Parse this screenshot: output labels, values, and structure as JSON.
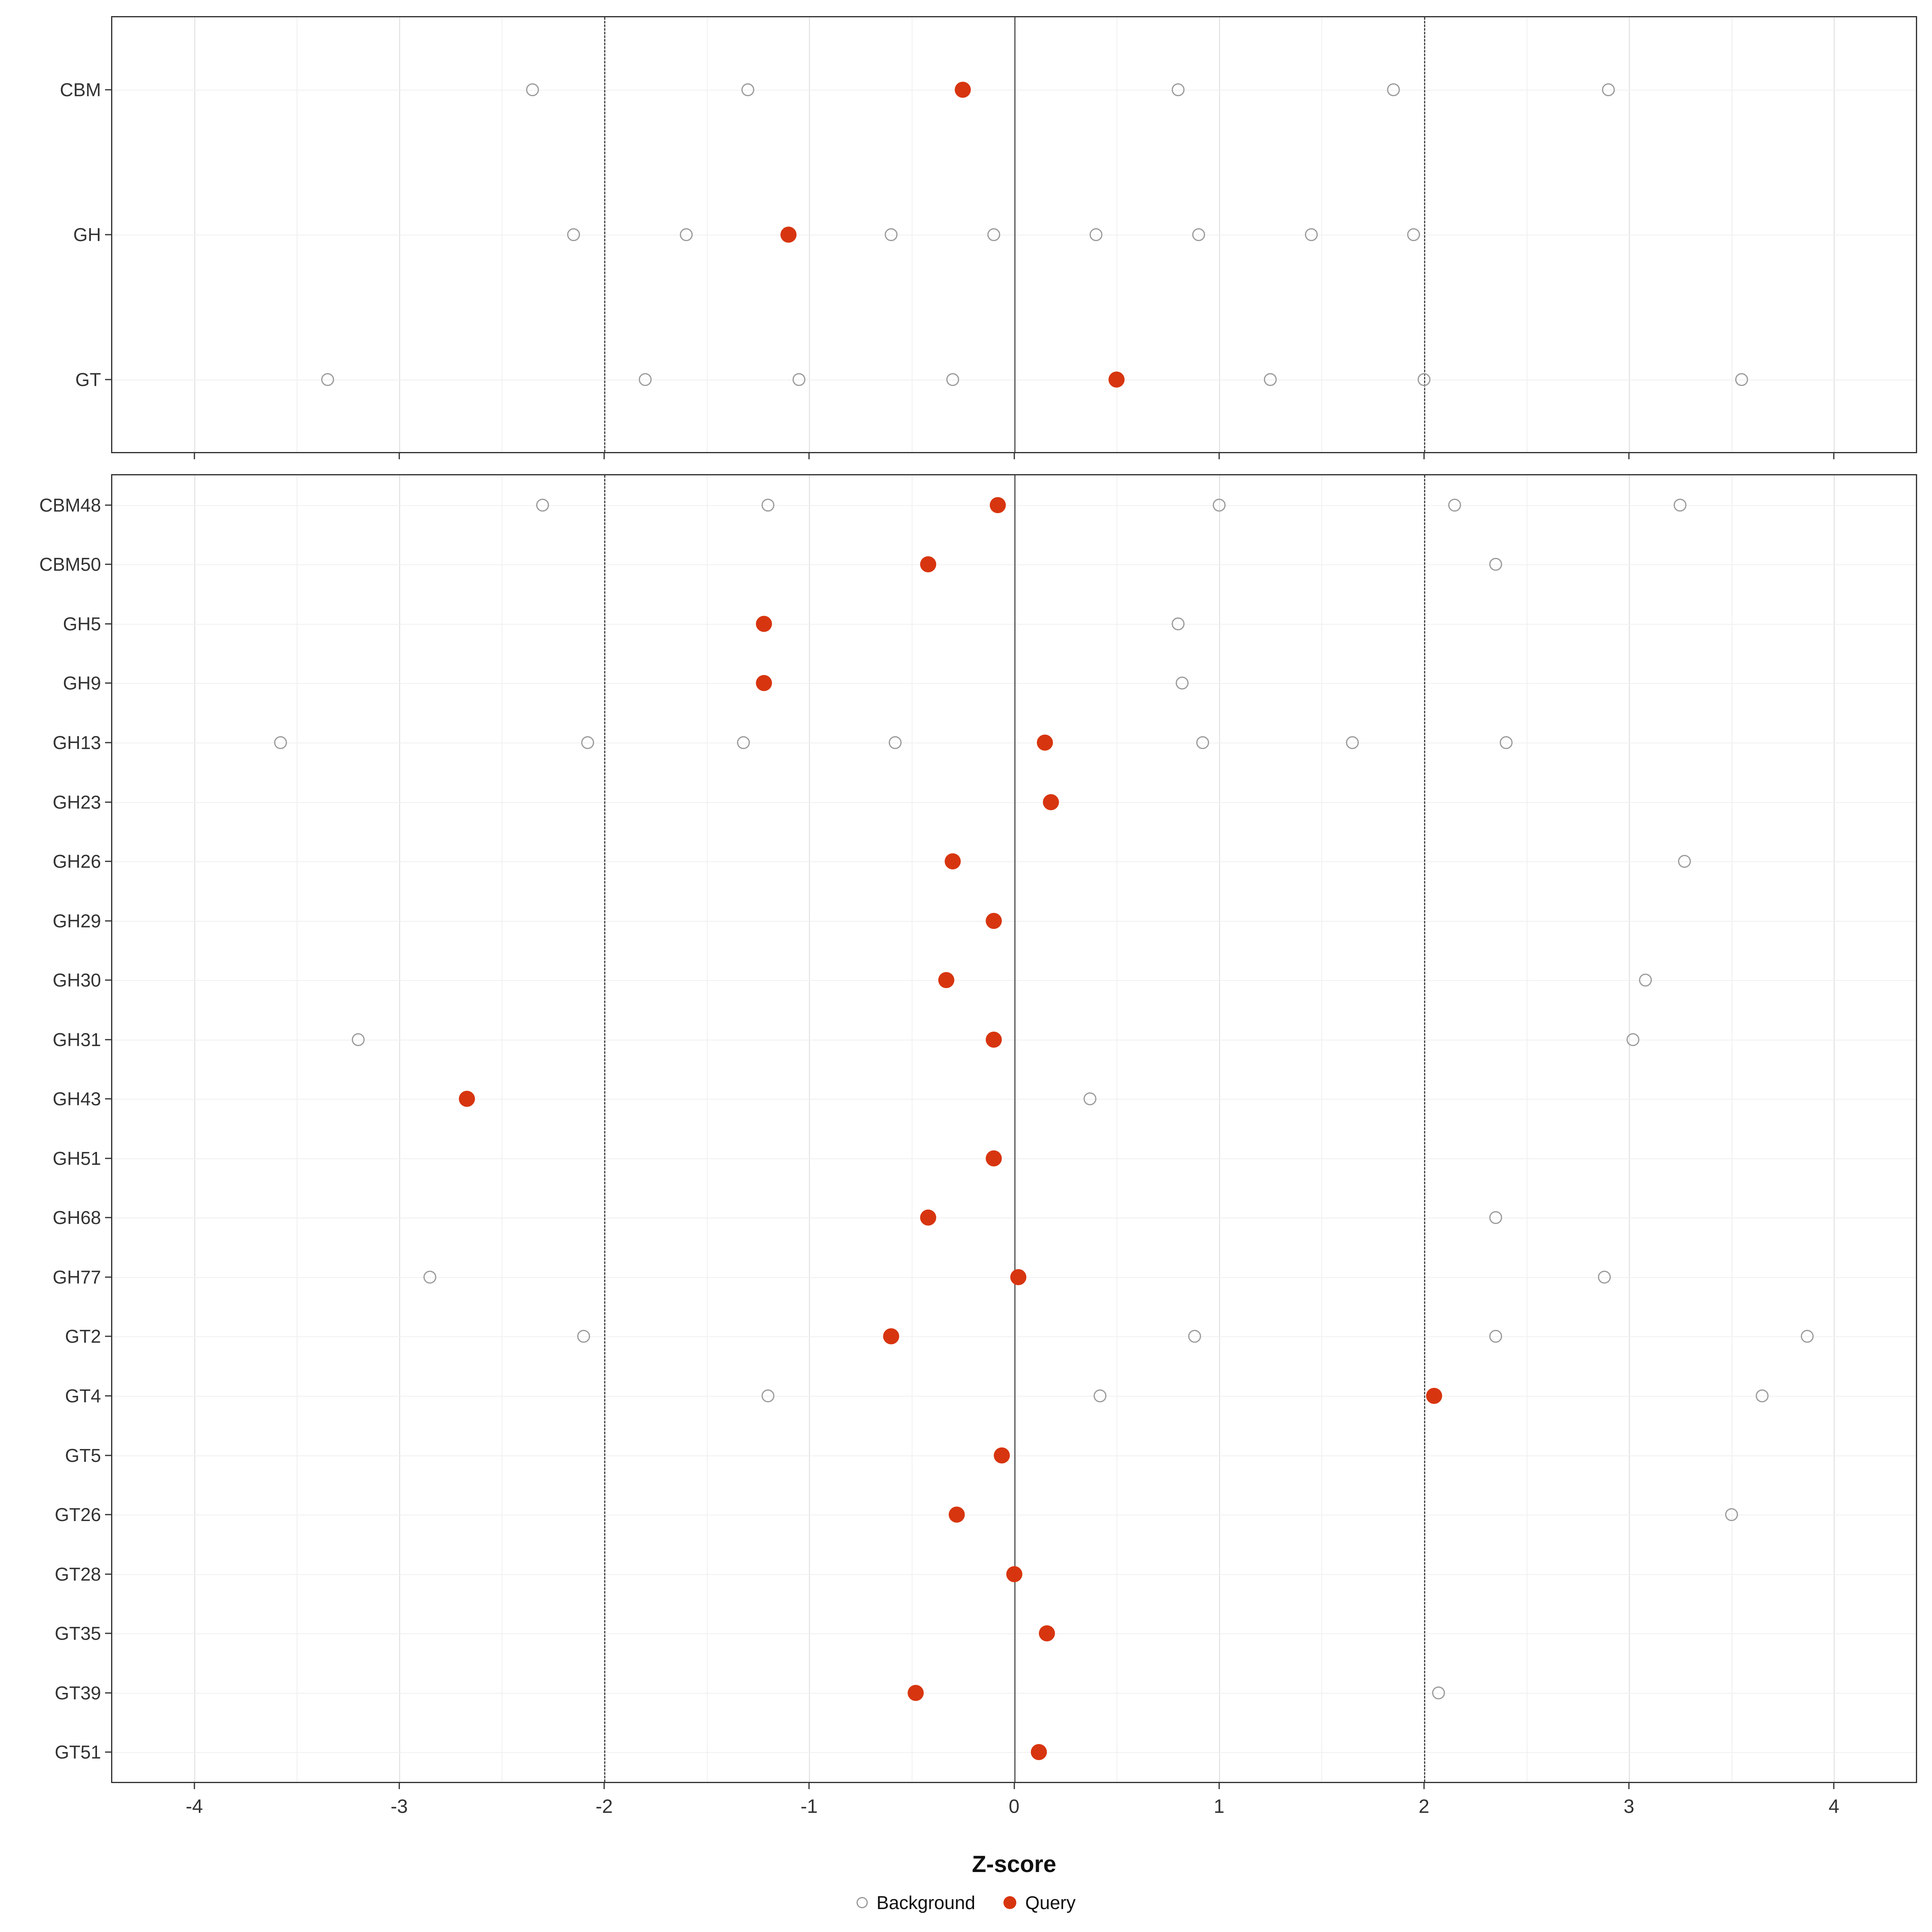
{
  "chart_data": {
    "type": "scatter",
    "title": "",
    "xlabel": "Z-score",
    "x_range": [
      -4.4,
      4.4
    ],
    "x_ticks": [
      -4,
      -3,
      -2,
      -1,
      0,
      1,
      2,
      3,
      4
    ],
    "x_minor_ticks": [
      -3.5,
      -2.5,
      -1.5,
      -0.5,
      0.5,
      1.5,
      2.5,
      3.5
    ],
    "reference_lines": {
      "solid": [
        0
      ],
      "dashed": [
        -2,
        2
      ]
    },
    "grid": true,
    "legend_position": "bottom",
    "legend": [
      {
        "label": "Background",
        "style": "open"
      },
      {
        "label": "Query",
        "style": "filled"
      }
    ],
    "colors": {
      "query_point": "#d7350f",
      "background_point": "#9b9b9b",
      "grid_major": "#dcdcdc",
      "grid_minor": "#f0f0f0",
      "panel_border": "#333333"
    },
    "panels": [
      {
        "name": "family-summary",
        "rows": [
          {
            "label": "CBM",
            "background": [
              -2.35,
              -1.3,
              0.8,
              1.85,
              2.9
            ],
            "query": [
              -0.25
            ]
          },
          {
            "label": "GH",
            "background": [
              -2.15,
              -1.6,
              -0.6,
              -0.1,
              0.4,
              0.9,
              1.45,
              1.95
            ],
            "query": [
              -1.1
            ]
          },
          {
            "label": "GT",
            "background": [
              -3.35,
              -1.8,
              -1.05,
              -0.3,
              1.25,
              2.0,
              3.55
            ],
            "query": [
              0.5
            ]
          }
        ]
      },
      {
        "name": "family-detail",
        "rows": [
          {
            "label": "CBM48",
            "background": [
              -2.3,
              -1.2,
              1.0,
              2.15,
              3.25
            ],
            "query": [
              -0.08
            ]
          },
          {
            "label": "CBM50",
            "background": [
              2.35
            ],
            "query": [
              -0.42
            ]
          },
          {
            "label": "GH5",
            "background": [
              0.8
            ],
            "query": [
              -1.22
            ]
          },
          {
            "label": "GH9",
            "background": [
              0.82
            ],
            "query": [
              -1.22
            ]
          },
          {
            "label": "GH13",
            "background": [
              -3.58,
              -2.08,
              -1.32,
              -0.58,
              0.92,
              1.65,
              2.4
            ],
            "query": [
              0.15
            ]
          },
          {
            "label": "GH23",
            "background": [],
            "query": [
              0.18
            ]
          },
          {
            "label": "GH26",
            "background": [
              3.27
            ],
            "query": [
              -0.3
            ]
          },
          {
            "label": "GH29",
            "background": [],
            "query": [
              -0.1
            ]
          },
          {
            "label": "GH30",
            "background": [
              3.08
            ],
            "query": [
              -0.33
            ]
          },
          {
            "label": "GH31",
            "background": [
              -3.2,
              3.02
            ],
            "query": [
              -0.1
            ]
          },
          {
            "label": "GH43",
            "background": [
              0.37
            ],
            "query": [
              -2.67
            ]
          },
          {
            "label": "GH51",
            "background": [],
            "query": [
              -0.1
            ]
          },
          {
            "label": "GH68",
            "background": [
              2.35
            ],
            "query": [
              -0.42
            ]
          },
          {
            "label": "GH77",
            "background": [
              -2.85,
              2.88
            ],
            "query": [
              0.02
            ]
          },
          {
            "label": "GT2",
            "background": [
              -2.1,
              0.88,
              2.35,
              3.87
            ],
            "query": [
              -0.6
            ]
          },
          {
            "label": "GT4",
            "background": [
              -1.2,
              0.42,
              3.65
            ],
            "query": [
              2.05
            ]
          },
          {
            "label": "GT5",
            "background": [],
            "query": [
              -0.06
            ]
          },
          {
            "label": "GT26",
            "background": [
              3.5
            ],
            "query": [
              -0.28
            ]
          },
          {
            "label": "GT28",
            "background": [],
            "query": [
              0.0
            ]
          },
          {
            "label": "GT35",
            "background": [],
            "query": [
              0.16
            ]
          },
          {
            "label": "GT39",
            "background": [
              2.07
            ],
            "query": [
              -0.48
            ]
          },
          {
            "label": "GT51",
            "background": [],
            "query": [
              0.12
            ]
          }
        ]
      }
    ]
  }
}
